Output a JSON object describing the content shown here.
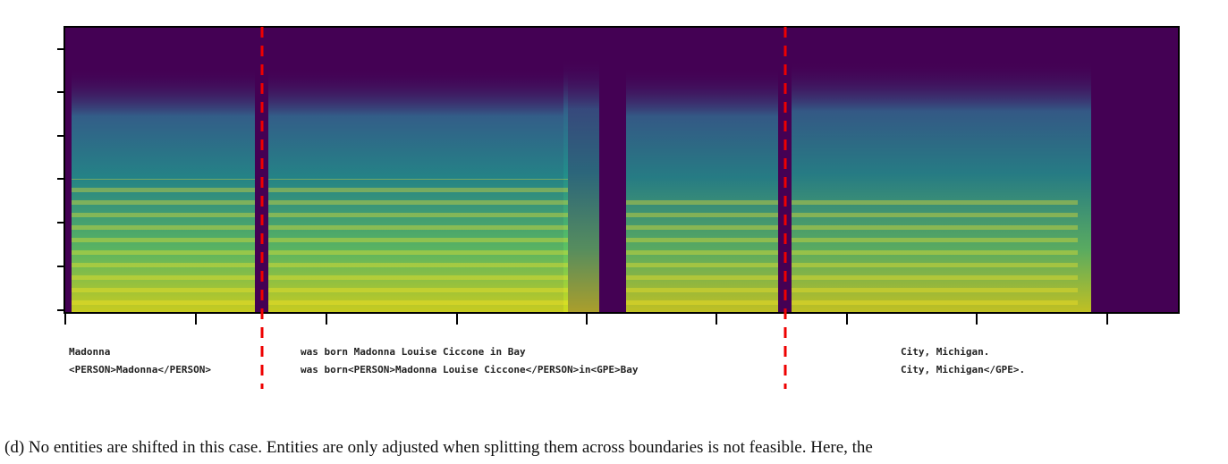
{
  "figure": {
    "segments": [
      {
        "text": "Madonna",
        "tagged": "<PERSON>Madonna</PERSON>"
      },
      {
        "text": "was born Madonna Louise Ciccone in Bay",
        "tagged": "was born<PERSON>Madonna Louise Ciccone</PERSON>in<GPE>Bay"
      },
      {
        "text": "City, Michigan.",
        "tagged": "City, Michigan</GPE>."
      }
    ],
    "caption": "(d) No entities are shifted in this case. Entities are only adjusted when splitting them across boundaries is not feasible. Here, the"
  }
}
